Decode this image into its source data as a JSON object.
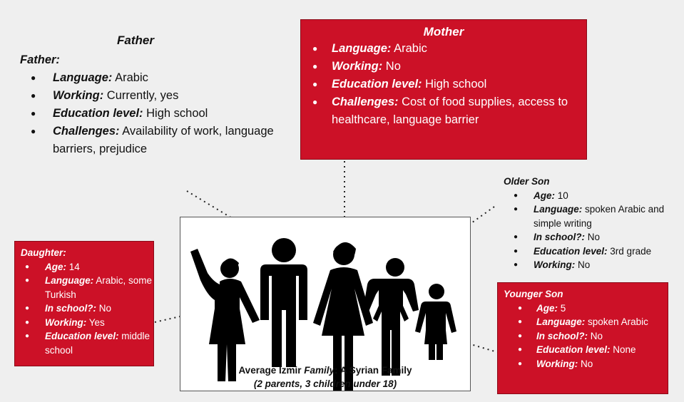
{
  "father": {
    "heading": "Father",
    "subheading": "Father:",
    "items": [
      {
        "label": "Language:",
        "value": "Arabic"
      },
      {
        "label": "Working:",
        "value": "Currently, yes"
      },
      {
        "label": "Education level:",
        "value": "High school"
      },
      {
        "label": "Challenges:",
        "value": "Availability of work, language barriers, prejudice"
      }
    ]
  },
  "mother": {
    "heading": "Mother",
    "items": [
      {
        "label": "Language:",
        "value": "Arabic"
      },
      {
        "label": "Working:",
        "value": "No"
      },
      {
        "label": "Education level:",
        "value": "High school"
      },
      {
        "label": "Challenges:",
        "value": "Cost of food supplies, access to healthcare, language barrier"
      }
    ]
  },
  "older_son": {
    "heading": "Older Son",
    "items": [
      {
        "label": "Age:",
        "value": "10"
      },
      {
        "label": "Language:",
        "value": "spoken Arabic and simple writing"
      },
      {
        "label": "In school?:",
        "value": "No"
      },
      {
        "label": "Education level:",
        "value": "3rd grade"
      },
      {
        "label": "Working:",
        "value": "No"
      }
    ]
  },
  "daughter": {
    "heading": "Daughter:",
    "items": [
      {
        "label": "Age:",
        "value": "14"
      },
      {
        "label": "Language:",
        "value": "Arabic, some Turkish"
      },
      {
        "label": "In school?:",
        "value": "No"
      },
      {
        "label": "Working:",
        "value": "Yes"
      },
      {
        "label": "Education level:",
        "value": "middle school"
      }
    ]
  },
  "younger_son": {
    "heading": "Younger Son",
    "items": [
      {
        "label": "Age:",
        "value": "5"
      },
      {
        "label": "Language:",
        "value": "spoken Arabic"
      },
      {
        "label": "In school?:",
        "value": "No"
      },
      {
        "label": "Education level:",
        "value": "None"
      },
      {
        "label": "Working:",
        "value": "No"
      }
    ]
  },
  "caption": {
    "line1_prefix": "Average Izmir ",
    "line1_italic": "Family",
    "line1_suffix": ":  A Syrian Family",
    "line2": "(2 parents, 3 children under 18)"
  },
  "colors": {
    "box_red": "#cc1127",
    "background": "#efefef"
  }
}
